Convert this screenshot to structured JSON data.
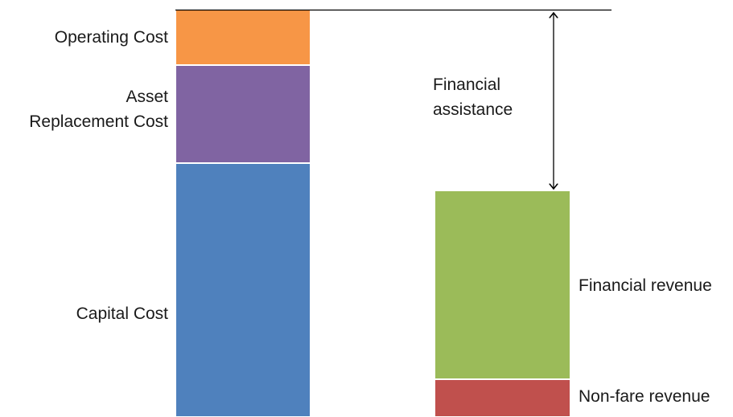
{
  "cost_bar": {
    "segments": [
      {
        "label_lines": [
          "Operating Cost"
        ],
        "color": "#F79646"
      },
      {
        "label_lines": [
          "Asset",
          "Replacement Cost"
        ],
        "color": "#8064A2"
      },
      {
        "label_lines": [
          "Capital Cost"
        ],
        "color": "#4F81BD"
      }
    ]
  },
  "revenue_bar": {
    "segments": [
      {
        "label": "Financial revenue",
        "color": "#9BBB59"
      },
      {
        "label": "Non-fare revenue",
        "color": "#C0504D"
      }
    ]
  },
  "gap": {
    "label_lines": [
      "Financial",
      "assistance"
    ]
  },
  "colors": {
    "line": "#000000",
    "segment_border": "#ffffff"
  }
}
